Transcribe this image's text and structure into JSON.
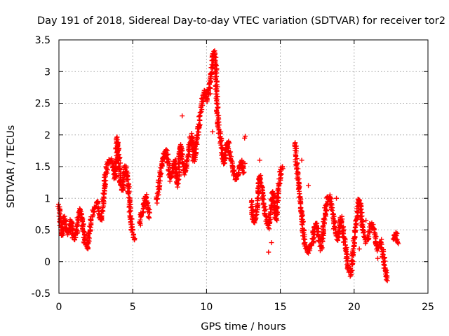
{
  "chart_data": {
    "type": "scatter",
    "title": "Day 191 of 2018, Sidereal Day-to-day VTEC variation (SDTVAR) for receiver tor2",
    "xlabel": "GPS time / hours",
    "ylabel": "SDTVAR / TECUs",
    "xlim": [
      0,
      25
    ],
    "ylim": [
      -0.5,
      3.5
    ],
    "xticks": [
      0,
      5,
      10,
      15,
      20,
      25
    ],
    "yticks": [
      -0.5,
      0,
      0.5,
      1,
      1.5,
      2,
      2.5,
      3,
      3.5
    ],
    "xtick_labels": [
      "0",
      "5",
      "10",
      "15",
      "20",
      "25"
    ],
    "ytick_labels": [
      "-0.5",
      "0",
      "0.5",
      "1",
      "1.5",
      "2",
      "2.5",
      "3",
      "3.5"
    ],
    "grid": true,
    "marker": "+",
    "marker_color": "#ff0000",
    "series": [
      {
        "name": "SDTVAR",
        "trace": [
          [
            0.0,
            0.9
          ],
          [
            0.1,
            0.6
          ],
          [
            0.2,
            0.4
          ],
          [
            0.35,
            0.7
          ],
          [
            0.5,
            0.55
          ],
          [
            0.65,
            0.45
          ],
          [
            0.8,
            0.65
          ],
          [
            1.0,
            0.35
          ],
          [
            1.2,
            0.45
          ],
          [
            1.4,
            0.85
          ],
          [
            1.6,
            0.6
          ],
          [
            1.75,
            0.3
          ],
          [
            1.9,
            0.2
          ],
          [
            2.05,
            0.45
          ],
          [
            2.2,
            0.65
          ],
          [
            2.4,
            0.85
          ],
          [
            2.6,
            0.95
          ],
          [
            2.75,
            0.7
          ],
          [
            2.9,
            0.65
          ],
          [
            3.0,
            1.0
          ],
          [
            3.15,
            1.35
          ],
          [
            3.3,
            1.55
          ],
          [
            3.5,
            1.6
          ],
          [
            3.7,
            1.5
          ],
          [
            3.8,
            1.3
          ],
          [
            3.9,
            1.7
          ],
          [
            3.95,
            1.95
          ],
          [
            4.05,
            1.7
          ],
          [
            4.15,
            1.3
          ],
          [
            4.3,
            1.1
          ],
          [
            4.45,
            1.5
          ],
          [
            4.6,
            1.4
          ],
          [
            4.7,
            1.15
          ],
          [
            4.8,
            0.9
          ],
          [
            4.9,
            0.6
          ],
          [
            5.0,
            0.45
          ],
          [
            5.1,
            0.35
          ],
          [
            5.5,
            0.6
          ],
          [
            5.6,
            0.75
          ],
          [
            5.75,
            0.9
          ],
          [
            5.9,
            1.05
          ],
          [
            6.05,
            0.85
          ],
          [
            6.1,
            0.7
          ],
          [
            6.6,
            0.95
          ],
          [
            6.75,
            1.15
          ],
          [
            6.9,
            1.45
          ],
          [
            7.0,
            1.6
          ],
          [
            7.15,
            1.7
          ],
          [
            7.3,
            1.75
          ],
          [
            7.4,
            1.55
          ],
          [
            7.55,
            1.3
          ],
          [
            7.7,
            1.45
          ],
          [
            7.85,
            1.6
          ],
          [
            7.95,
            1.4
          ],
          [
            8.05,
            1.2
          ],
          [
            8.15,
            1.6
          ],
          [
            8.25,
            1.85
          ],
          [
            8.35,
            1.6
          ],
          [
            8.5,
            1.4
          ],
          [
            8.65,
            1.55
          ],
          [
            8.8,
            1.75
          ],
          [
            8.95,
            2.0
          ],
          [
            9.05,
            1.85
          ],
          [
            9.15,
            1.6
          ],
          [
            9.25,
            1.75
          ],
          [
            9.35,
            1.95
          ],
          [
            9.45,
            2.1
          ],
          [
            9.55,
            2.25
          ],
          [
            9.65,
            2.45
          ],
          [
            9.75,
            2.6
          ],
          [
            9.85,
            2.7
          ],
          [
            9.95,
            2.65
          ],
          [
            10.05,
            2.55
          ],
          [
            10.15,
            2.7
          ],
          [
            10.25,
            2.85
          ],
          [
            10.35,
            3.05
          ],
          [
            10.45,
            3.25
          ],
          [
            10.55,
            3.3
          ],
          [
            10.6,
            3.15
          ],
          [
            10.65,
            2.9
          ],
          [
            10.7,
            2.5
          ],
          [
            10.8,
            2.15
          ],
          [
            10.95,
            1.95
          ],
          [
            11.1,
            1.65
          ],
          [
            11.2,
            1.55
          ],
          [
            11.3,
            1.75
          ],
          [
            11.45,
            1.9
          ],
          [
            11.6,
            1.65
          ],
          [
            11.8,
            1.45
          ],
          [
            12.0,
            1.3
          ],
          [
            12.2,
            1.45
          ],
          [
            12.35,
            1.6
          ],
          [
            12.5,
            1.4
          ],
          [
            13.0,
            0.95
          ],
          [
            13.1,
            0.8
          ],
          [
            13.2,
            0.6
          ],
          [
            13.35,
            0.7
          ],
          [
            13.5,
            1.0
          ],
          [
            13.6,
            1.35
          ],
          [
            13.75,
            1.15
          ],
          [
            13.9,
            0.85
          ],
          [
            14.05,
            0.65
          ],
          [
            14.2,
            0.55
          ],
          [
            14.35,
            0.85
          ],
          [
            14.5,
            1.1
          ],
          [
            14.6,
            0.85
          ],
          [
            14.7,
            0.65
          ],
          [
            14.8,
            0.9
          ],
          [
            14.9,
            1.2
          ],
          [
            15.05,
            1.45
          ],
          [
            15.15,
            1.5
          ],
          [
            16.0,
            1.9
          ],
          [
            16.1,
            1.55
          ],
          [
            16.2,
            1.3
          ],
          [
            16.3,
            1.05
          ],
          [
            16.4,
            0.85
          ],
          [
            16.5,
            0.6
          ],
          [
            16.6,
            0.35
          ],
          [
            16.75,
            0.2
          ],
          [
            16.9,
            0.15
          ],
          [
            17.05,
            0.25
          ],
          [
            17.2,
            0.3
          ],
          [
            17.3,
            0.55
          ],
          [
            17.45,
            0.6
          ],
          [
            17.6,
            0.4
          ],
          [
            17.75,
            0.2
          ],
          [
            17.9,
            0.5
          ],
          [
            18.05,
            0.75
          ],
          [
            18.15,
            0.95
          ],
          [
            18.3,
            1.05
          ],
          [
            18.45,
            0.9
          ],
          [
            18.6,
            0.7
          ],
          [
            18.7,
            0.5
          ],
          [
            18.85,
            0.35
          ],
          [
            19.0,
            0.5
          ],
          [
            19.1,
            0.7
          ],
          [
            19.2,
            0.55
          ],
          [
            19.35,
            0.3
          ],
          [
            19.5,
            0.1
          ],
          [
            19.6,
            -0.1
          ],
          [
            19.75,
            -0.2
          ],
          [
            19.9,
            0.05
          ],
          [
            20.0,
            0.3
          ],
          [
            20.1,
            0.55
          ],
          [
            20.25,
            0.85
          ],
          [
            20.35,
            1.0
          ],
          [
            20.45,
            0.8
          ],
          [
            20.55,
            0.55
          ],
          [
            20.7,
            0.4
          ],
          [
            20.85,
            0.3
          ],
          [
            21.0,
            0.45
          ],
          [
            21.15,
            0.6
          ],
          [
            21.3,
            0.55
          ],
          [
            21.45,
            0.35
          ],
          [
            21.6,
            0.2
          ],
          [
            21.75,
            0.3
          ],
          [
            21.9,
            0.2
          ],
          [
            22.0,
            0.05
          ],
          [
            22.1,
            -0.1
          ],
          [
            22.2,
            -0.25
          ],
          [
            22.25,
            -0.3
          ],
          [
            22.7,
            0.35
          ],
          [
            22.75,
            0.4
          ],
          [
            22.85,
            0.45
          ],
          [
            22.95,
            0.3
          ]
        ],
        "extra_points": [
          [
            12.5,
            1.5
          ],
          [
            12.6,
            1.55
          ],
          [
            12.62,
            1.98
          ],
          [
            12.58,
            1.95
          ],
          [
            8.35,
            2.3
          ],
          [
            9.2,
            1.8
          ],
          [
            10.25,
            2.65
          ],
          [
            10.4,
            2.05
          ],
          [
            13.6,
            1.6
          ],
          [
            14.2,
            0.15
          ],
          [
            14.4,
            0.3
          ],
          [
            16.25,
            1.2
          ],
          [
            16.9,
            1.2
          ],
          [
            18.0,
            0.85
          ],
          [
            18.8,
            1.0
          ],
          [
            19.45,
            0.05
          ],
          [
            20.35,
            0.2
          ],
          [
            20.8,
            0.65
          ],
          [
            21.6,
            0.05
          ],
          [
            21.85,
            0.35
          ],
          [
            16.45,
            1.6
          ]
        ]
      }
    ]
  }
}
